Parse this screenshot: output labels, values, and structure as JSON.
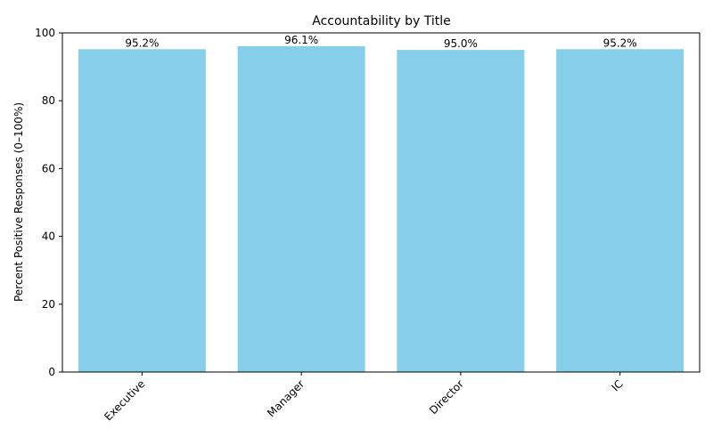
{
  "chart_data": {
    "type": "bar",
    "title": "Accountability by Title",
    "xlabel": "",
    "ylabel": "Percent Positive Responses (0–100%)",
    "categories": [
      "Executive",
      "Manager",
      "Director",
      "IC"
    ],
    "values": [
      95.2,
      96.1,
      95.0,
      95.2
    ],
    "data_labels": [
      "95.2%",
      "96.1%",
      "95.0%",
      "95.2%"
    ],
    "ylim": [
      0,
      100
    ],
    "yticks": [
      0,
      20,
      40,
      60,
      80,
      100
    ],
    "bar_color": "#87CEEB",
    "grid": false,
    "x_tick_rotation": "45"
  }
}
